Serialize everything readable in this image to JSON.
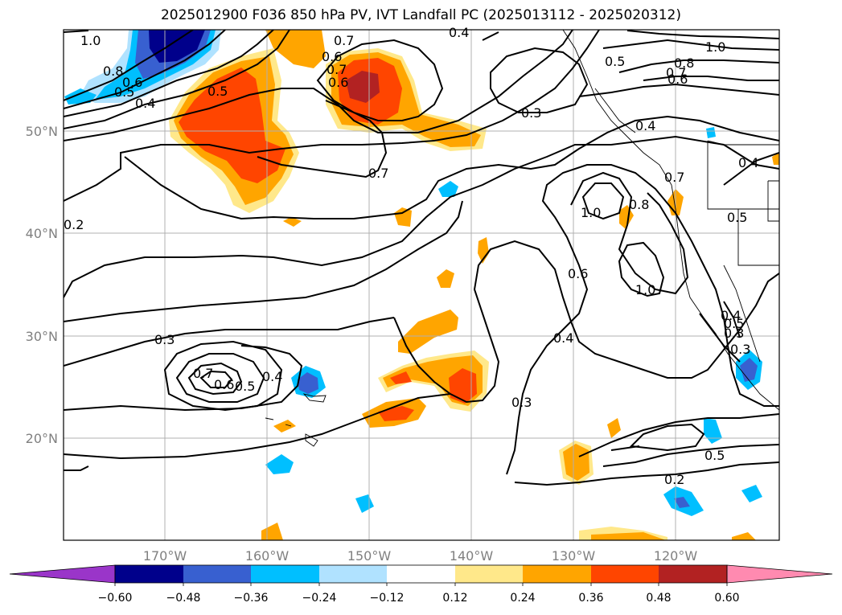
{
  "title": "2025012900 F036 850 hPa PV, IVT Landfall PC (2025013112 - 2025020312)",
  "lat_labels": [
    "50°N",
    "40°N",
    "30°N",
    "20°N"
  ],
  "lon_labels": [
    "170°W",
    "160°W",
    "150°W",
    "140°W",
    "130°W",
    "120°W"
  ],
  "contour_labels": [
    "1.0",
    "0.8",
    "0.6",
    "0.5",
    "0.4",
    "0.5",
    "0.7",
    "0.6",
    "0.7",
    "0.6",
    "0.7",
    "0.3",
    "0.4",
    "1.0",
    "0.8",
    "0.7",
    "0.6",
    "0.5",
    "0.4",
    "0.5",
    "0.4",
    "0.7",
    "1.0",
    "0.8",
    "0.6",
    "1.0",
    "0.4",
    "0.3",
    "0.3",
    "0.7",
    "0.6",
    "0.5",
    "0.4",
    "0.3",
    "0.5",
    "0.2",
    "0.5",
    "0.2",
    "0.4",
    "0.3"
  ],
  "colorbar": {
    "ticks": [
      "−0.60",
      "−0.48",
      "−0.36",
      "−0.24",
      "−0.12",
      "0.12",
      "0.24",
      "0.36",
      "0.48",
      "0.60"
    ],
    "colors": [
      "#9a35c9",
      "#00008b",
      "#3860d0",
      "#00bfff",
      "#b0e2ff",
      "#ffffff",
      "#ffe88a",
      "#ffa500",
      "#ff4500",
      "#b22222",
      "#ff8ab0"
    ]
  }
}
